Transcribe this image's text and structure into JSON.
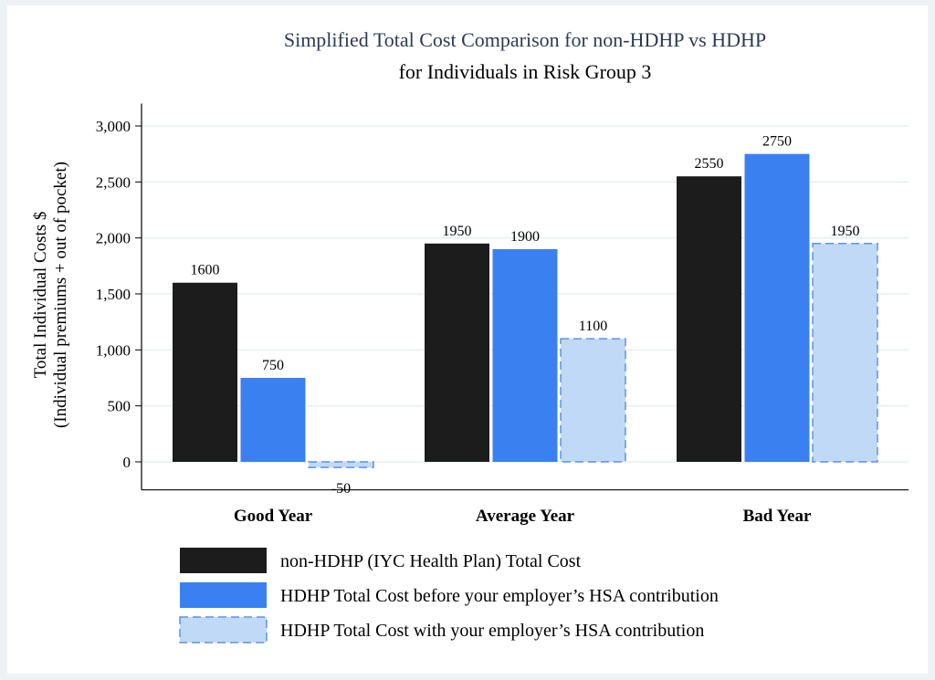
{
  "chart_data": {
    "type": "bar",
    "title": "Simplified Total Cost Comparison for non-HDHP vs HDHP",
    "subtitle": "for Individuals in Risk Group 3",
    "ylabel": [
      "Total Individual Costs $",
      "(Individual premiums + out of pocket)"
    ],
    "xlabel": "",
    "ylim": [
      -250,
      3200
    ],
    "yticks": [
      0,
      500,
      1000,
      1500,
      2000,
      2500,
      3000
    ],
    "ytick_labels": [
      "0",
      "500",
      "1,000",
      "1,500",
      "2,000",
      "2,500",
      "3,000"
    ],
    "grid": true,
    "categories": [
      "Good Year",
      "Average Year",
      "Bad Year"
    ],
    "series": [
      {
        "name": "non-HDHP (IYC Health Plan) Total Cost",
        "values": [
          1600,
          1950,
          2550
        ],
        "color": "#1c1c1c",
        "dashed": false
      },
      {
        "name": "HDHP Total Cost before your employer’s HSA contribution",
        "values": [
          750,
          1900,
          2750
        ],
        "color": "#3a80f0",
        "dashed": false
      },
      {
        "name": "HDHP Total Cost with your employer’s HSA contribution",
        "values": [
          -50,
          1100,
          1950
        ],
        "color": "#c0d9f6",
        "edge": "#5b93e6",
        "dashed": true
      }
    ],
    "legend_placement": "bottom"
  }
}
